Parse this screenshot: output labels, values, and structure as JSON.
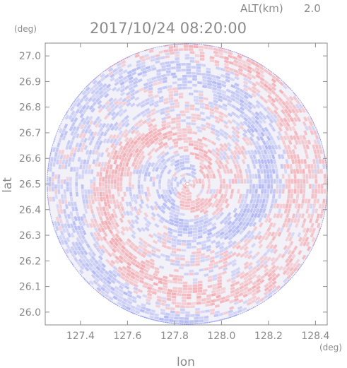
{
  "header": {
    "altitude_label": "ALT(km)",
    "altitude_value": "2.0",
    "timestamp": "2017/10/24 08:20:00",
    "y_unit": "(deg)",
    "x_unit": "(deg)"
  },
  "chart_data": {
    "type": "heatmap",
    "title": "2017/10/24 08:20:00",
    "xlabel": "lon",
    "ylabel": "lat",
    "xlim": [
      127.25,
      128.45
    ],
    "ylim": [
      25.95,
      27.05
    ],
    "x_ticks": [
      "127.4",
      "127.6",
      "127.8",
      "128.0",
      "128.2",
      "128.4"
    ],
    "y_ticks": [
      "26.0",
      "26.1",
      "26.2",
      "26.3",
      "26.4",
      "26.5",
      "26.6",
      "26.7",
      "26.8",
      "26.9",
      "27.0"
    ],
    "center": {
      "lon": 127.855,
      "lat": 26.5
    },
    "grid": false,
    "colors": {
      "positive": "#f4a3a8",
      "negative": "#a9b2f4",
      "axis": "#8a8a8a",
      "background": "#ffffff"
    }
  }
}
